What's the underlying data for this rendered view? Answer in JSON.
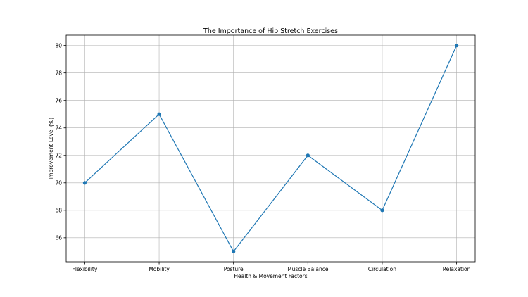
{
  "chart_data": {
    "type": "line",
    "title": "The Importance of Hip Stretch Exercises",
    "xlabel": "Health & Movement Factors",
    "ylabel": "Improvement Level (%)",
    "categories": [
      "Flexibility",
      "Mobility",
      "Posture",
      "Muscle Balance",
      "Circulation",
      "Relaxation"
    ],
    "values": [
      70,
      75,
      65,
      72,
      68,
      80
    ],
    "ylim": [
      64.25,
      80.75
    ],
    "yticks": [
      66,
      68,
      70,
      72,
      74,
      76,
      78,
      80
    ],
    "grid": true,
    "marker": "circle",
    "color": "#1f77b4"
  }
}
